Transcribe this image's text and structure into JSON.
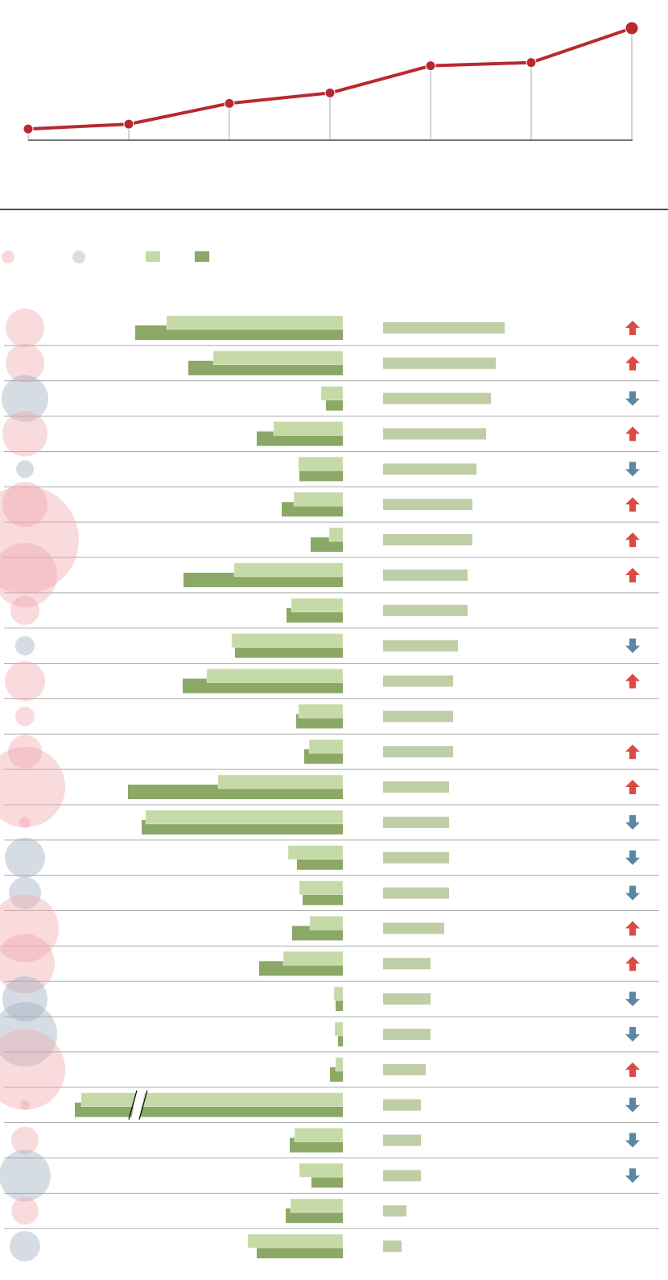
{
  "colors": {
    "line": "#b8292f",
    "axis": "#777777",
    "drop": "#aaaaaa",
    "divider": "#111111",
    "row_rule": "#aaaaaa",
    "circle_pink": "#f0a8ad",
    "circle_blue": "#9eacbf",
    "bar_light": "#c6daa8",
    "bar_dark": "#8ba866",
    "bar_right": "#c0cea8",
    "arrow_up": "#dc4a45",
    "arrow_down": "#5b87a3"
  },
  "chart_data": [
    {
      "type": "line",
      "title": "",
      "xlabel": "",
      "ylabel": "",
      "x": [
        1,
        2,
        3,
        4,
        5,
        6,
        7
      ],
      "values": [
        14,
        20,
        46,
        59,
        93,
        97,
        140
      ],
      "ylim": [
        0,
        145
      ]
    },
    {
      "type": "bar",
      "legend": [
        "circle-pink",
        "circle-blue",
        "bar-light",
        "bar-dark"
      ],
      "rows": [
        {
          "circle": 24,
          "color": "pink",
          "light": 219,
          "dark": 258,
          "right": 151,
          "arrow": "up"
        },
        {
          "circle": 24,
          "color": "pink",
          "light": 161,
          "dark": 192,
          "right": 140,
          "arrow": "up"
        },
        {
          "circle": 29,
          "color": "blue",
          "light": 27,
          "dark": 21,
          "right": 134,
          "arrow": "down"
        },
        {
          "circle": 28,
          "color": "pink",
          "light": 86,
          "dark": 107,
          "right": 128,
          "arrow": "up"
        },
        {
          "circle": 11,
          "color": "blue",
          "light": 55,
          "dark": 54,
          "right": 116,
          "arrow": "down"
        },
        {
          "circle": 28,
          "color": "pink",
          "light": 61,
          "dark": 76,
          "right": 111,
          "arrow": "up"
        },
        {
          "circle": 67,
          "color": "pink",
          "light": 17,
          "dark": 40,
          "right": 111,
          "arrow": "up"
        },
        {
          "circle": 40,
          "color": "pink",
          "light": 135,
          "dark": 198,
          "right": 105,
          "arrow": "up"
        },
        {
          "circle": 18,
          "color": "pink",
          "light": 64,
          "dark": 70,
          "right": 105,
          "arrow": "none"
        },
        {
          "circle": 12,
          "color": "blue",
          "light": 138,
          "dark": 134,
          "right": 93,
          "arrow": "down"
        },
        {
          "circle": 25,
          "color": "pink",
          "light": 169,
          "dark": 199,
          "right": 87,
          "arrow": "up"
        },
        {
          "circle": 12,
          "color": "pink",
          "light": 55,
          "dark": 58,
          "right": 87,
          "arrow": "none"
        },
        {
          "circle": 21,
          "color": "pink",
          "light": 42,
          "dark": 48,
          "right": 87,
          "arrow": "up"
        },
        {
          "circle": 50,
          "color": "pink",
          "light": 155,
          "dark": 267,
          "right": 82,
          "arrow": "up"
        },
        {
          "circle": 7,
          "color": "pink",
          "light": 245,
          "dark": 250,
          "right": 82,
          "arrow": "down"
        },
        {
          "circle": 25,
          "color": "blue",
          "light": 68,
          "dark": 57,
          "right": 82,
          "arrow": "down"
        },
        {
          "circle": 20,
          "color": "blue",
          "light": 54,
          "dark": 50,
          "right": 82,
          "arrow": "down"
        },
        {
          "circle": 42,
          "color": "pink",
          "light": 41,
          "dark": 63,
          "right": 76,
          "arrow": "up"
        },
        {
          "circle": 37,
          "color": "pink",
          "light": 74,
          "dark": 104,
          "right": 59,
          "arrow": "up"
        },
        {
          "circle": 28,
          "color": "blue",
          "light": 11,
          "dark": 9,
          "right": 59,
          "arrow": "down"
        },
        {
          "circle": 40,
          "color": "blue",
          "light": 10,
          "dark": 6,
          "right": 59,
          "arrow": "down"
        },
        {
          "circle": 50,
          "color": "pink",
          "light": 9,
          "dark": 16,
          "right": 53,
          "arrow": "up"
        },
        {
          "circle": 6,
          "color": "pink",
          "light": 325,
          "dark": 333,
          "right": 47,
          "arrow": "down",
          "broken": true
        },
        {
          "circle": 17,
          "color": "pink",
          "light": 60,
          "dark": 66,
          "right": 47,
          "arrow": "down"
        },
        {
          "circle": 32,
          "color": "blue",
          "light": 54,
          "dark": 39,
          "right": 47,
          "arrow": "down"
        },
        {
          "circle": 17,
          "color": "pink",
          "light": 65,
          "dark": 71,
          "right": 29,
          "arrow": "none"
        },
        {
          "circle": 19,
          "color": "blue",
          "light": 118,
          "dark": 107,
          "right": 23,
          "arrow": "none"
        }
      ]
    }
  ]
}
